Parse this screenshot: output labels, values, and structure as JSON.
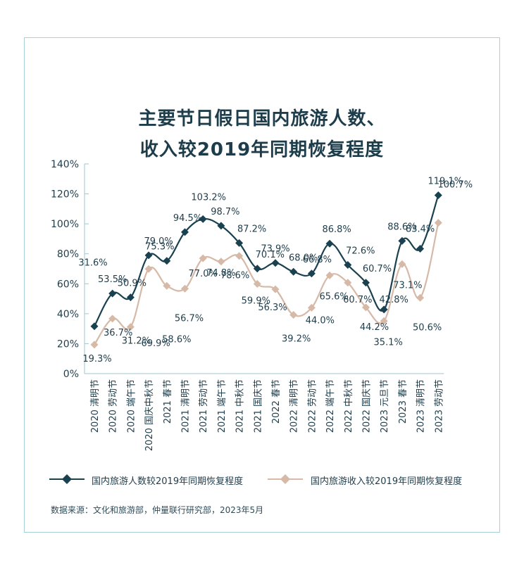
{
  "title_line1": "主要节日假日国内旅游人数、",
  "title_line2": "收入较2019年同期恢复程度",
  "source": "数据来源：文化和旅游部，仲量联行研究部，2023年5月",
  "colors": {
    "visitors": "#1a4150",
    "revenue": "#d6b9a7",
    "frame": "#a9cfd8"
  },
  "chart_data": {
    "type": "line",
    "categories": [
      "2020 清明节",
      "2020 劳动节",
      "2020 端午节",
      "2020 国庆中秋节",
      "2021 春节",
      "2021 清明节",
      "2021 劳动节",
      "2021 端午节",
      "2021 中秋节",
      "2021 国庆节",
      "2022 春节",
      "2022 清明节",
      "2022 劳动节",
      "2022 端午节",
      "2022 中秋节",
      "2022 国庆节",
      "2023 元旦节",
      "2023 春节",
      "2023 清明节",
      "2023 劳动节"
    ],
    "ylim": [
      0,
      140
    ],
    "yticks": [
      "0%",
      "20%",
      "40%",
      "60%",
      "80%",
      "100%",
      "120%",
      "140%"
    ],
    "legend_position": "bottom",
    "series": [
      {
        "name": "国内旅游人数较2019年同期恢复程度",
        "values": [
          31.6,
          53.5,
          50.9,
          79.0,
          75.3,
          94.5,
          103.2,
          98.7,
          87.2,
          70.1,
          73.9,
          68.0,
          66.8,
          86.8,
          72.6,
          60.7,
          42.8,
          88.6,
          83.4,
          119.1
        ],
        "labels": [
          "31.6%",
          "53.5%",
          "50.9%",
          "79.0%",
          "75.3%",
          "94.5%",
          "103.2%",
          "98.7%",
          "87.2%",
          "70.1%",
          "73.9%",
          "68.0%",
          "66.8%",
          "86.8%",
          "72.6%",
          "60.7%",
          "42.8%",
          "88.6%",
          "83.4%",
          "119.1%"
        ]
      },
      {
        "name": "国内旅游收入较2019年同期恢复程度",
        "values": [
          19.3,
          36.7,
          31.2,
          69.9,
          58.6,
          56.7,
          77.0,
          74.8,
          78.6,
          59.9,
          56.3,
          39.2,
          44.0,
          65.6,
          60.7,
          44.2,
          35.1,
          73.1,
          50.6,
          100.7
        ],
        "labels": [
          "19.3%",
          "36.7%",
          "31.2%",
          "69.9%",
          "58.6%",
          "56.7%",
          "77.0%",
          "74.8%",
          "78.6%",
          "59.9%",
          "56.3%",
          "39.2%",
          "44.0%",
          "65.6%",
          "60.7%",
          "44.2%",
          "35.1%",
          "73.1%",
          "50.6%",
          "100.7%"
        ]
      }
    ]
  }
}
